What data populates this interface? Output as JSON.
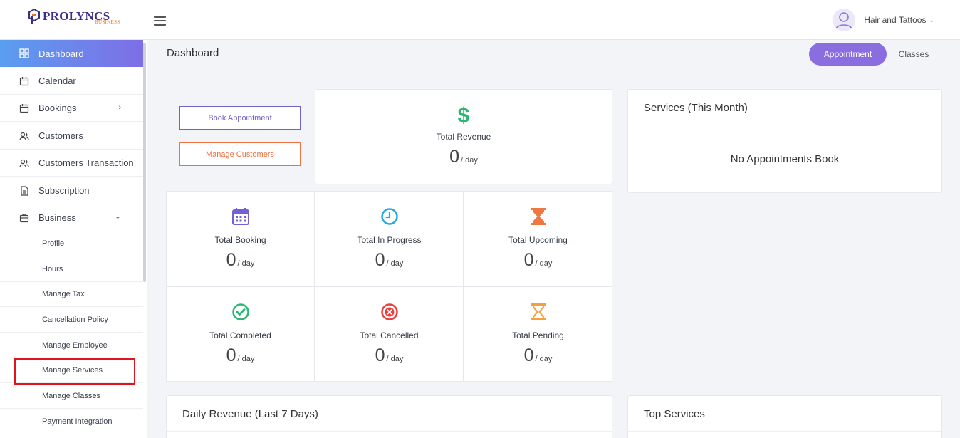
{
  "brand": {
    "name": "PROLYNCS",
    "sub": "BUSINESS",
    "primary": "#3a2f86",
    "accent": "#e8742c"
  },
  "header": {
    "user_name": "Hair and Tattoos",
    "menu_icon": "hamburger-icon"
  },
  "sidebar": {
    "items": [
      {
        "label": "Dashboard",
        "icon": "grid-icon",
        "active": true
      },
      {
        "label": "Calendar",
        "icon": "calendar-icon"
      },
      {
        "label": "Bookings",
        "icon": "calendar-icon"
      },
      {
        "label": "Customers",
        "icon": "users-icon"
      },
      {
        "label": "Customers Transaction",
        "icon": "users-icon"
      },
      {
        "label": "Subscription",
        "icon": "document-icon"
      },
      {
        "label": "Business",
        "icon": "bag-icon"
      }
    ],
    "sub_items": [
      "Profile",
      "Hours",
      "Manage Tax",
      "Cancellation Policy",
      "Manage Employee",
      "Manage Services",
      "Manage Classes",
      "Payment Integration"
    ]
  },
  "main": {
    "title": "Dashboard",
    "tabs": {
      "appointment": "Appointment",
      "classes": "Classes"
    },
    "buttons": {
      "book": "Book Appointment",
      "manage_customers": "Manage Customers"
    },
    "revenue": {
      "label": "Total Revenue",
      "value": "0",
      "unit": "/ day",
      "icon": "dollar-icon"
    },
    "stats": [
      {
        "label": "Total Booking",
        "value": "0",
        "unit": "/ day",
        "icon": "calendar-grid-icon",
        "color": "#7460d6"
      },
      {
        "label": "Total In Progress",
        "value": "0",
        "unit": "/ day",
        "icon": "clock-icon",
        "color": "#2aa8e0"
      },
      {
        "label": "Total Upcoming",
        "value": "0",
        "unit": "/ day",
        "icon": "hourglass-icon",
        "color": "#f07840"
      },
      {
        "label": "Total Completed",
        "value": "0",
        "unit": "/ day",
        "icon": "check-circle-icon",
        "color": "#2bb673"
      },
      {
        "label": "Total Cancelled",
        "value": "0",
        "unit": "/ day",
        "icon": "x-circle-icon",
        "color": "#ee3b3b"
      },
      {
        "label": "Total Pending",
        "value": "0",
        "unit": "/ day",
        "icon": "hourglass-outline-icon",
        "color": "#f6a03a"
      }
    ],
    "services_month": {
      "title": "Services (This Month)",
      "empty": "No Appointments Book"
    },
    "daily_revenue": {
      "title": "Daily Revenue (Last 7 Days)"
    },
    "top_services": {
      "title": "Top Services"
    }
  }
}
